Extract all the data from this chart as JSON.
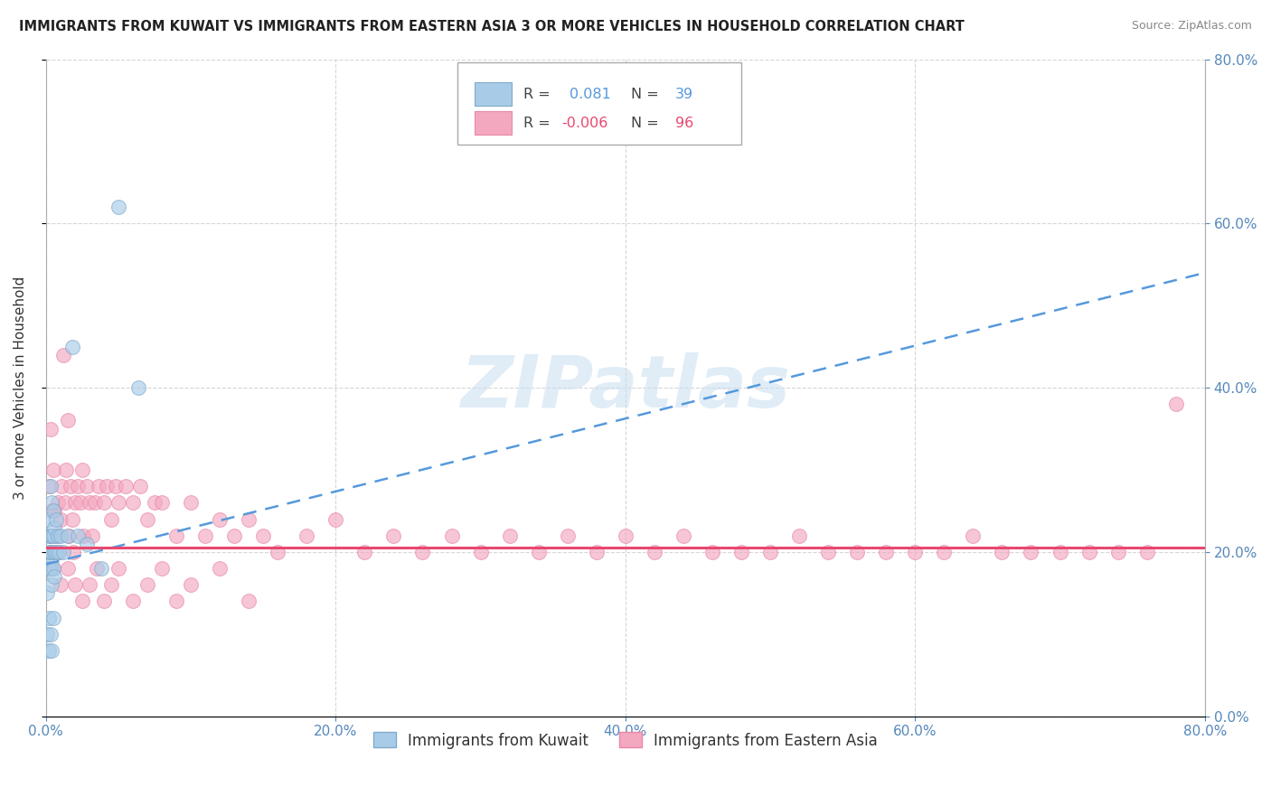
{
  "title": "IMMIGRANTS FROM KUWAIT VS IMMIGRANTS FROM EASTERN ASIA 3 OR MORE VEHICLES IN HOUSEHOLD CORRELATION CHART",
  "source": "Source: ZipAtlas.com",
  "ylabel": "3 or more Vehicles in Household",
  "legend1_R": "0.081",
  "legend1_N": "39",
  "legend2_R": "-0.006",
  "legend2_N": "96",
  "kuwait_color": "#a8cce8",
  "kuwait_edge": "#80aacc",
  "ea_color": "#f4a8c0",
  "ea_edge": "#e888a8",
  "trend_kuwait_color": "#5599dd",
  "trend_ea_color": "#e84870",
  "background_color": "#ffffff",
  "grid_color": "#cccccc",
  "tick_color": "#5588bb",
  "watermark": "ZIPatlas",
  "watermark_color": "#c8ddf0",
  "xlim": [
    0.0,
    0.8
  ],
  "ylim": [
    0.0,
    0.8
  ],
  "xticks": [
    0.0,
    0.2,
    0.4,
    0.6,
    0.8
  ],
  "yticks": [
    0.0,
    0.2,
    0.4,
    0.6,
    0.8
  ],
  "kuwait_x": [
    0.001,
    0.001,
    0.001,
    0.001,
    0.002,
    0.002,
    0.002,
    0.002,
    0.002,
    0.003,
    0.003,
    0.003,
    0.003,
    0.003,
    0.004,
    0.004,
    0.004,
    0.004,
    0.004,
    0.005,
    0.005,
    0.005,
    0.005,
    0.006,
    0.006,
    0.006,
    0.007,
    0.007,
    0.008,
    0.009,
    0.01,
    0.012,
    0.015,
    0.018,
    0.022,
    0.028,
    0.038,
    0.05,
    0.064
  ],
  "kuwait_y": [
    0.24,
    0.19,
    0.15,
    0.1,
    0.22,
    0.2,
    0.18,
    0.12,
    0.08,
    0.28,
    0.22,
    0.2,
    0.18,
    0.1,
    0.26,
    0.22,
    0.2,
    0.16,
    0.08,
    0.25,
    0.22,
    0.18,
    0.12,
    0.23,
    0.2,
    0.17,
    0.24,
    0.2,
    0.22,
    0.2,
    0.22,
    0.2,
    0.22,
    0.45,
    0.22,
    0.21,
    0.18,
    0.62,
    0.4
  ],
  "ea_x": [
    0.002,
    0.003,
    0.003,
    0.004,
    0.005,
    0.005,
    0.006,
    0.007,
    0.008,
    0.009,
    0.01,
    0.011,
    0.012,
    0.013,
    0.014,
    0.015,
    0.016,
    0.017,
    0.018,
    0.019,
    0.02,
    0.022,
    0.024,
    0.025,
    0.026,
    0.028,
    0.03,
    0.032,
    0.034,
    0.036,
    0.04,
    0.042,
    0.045,
    0.048,
    0.05,
    0.055,
    0.06,
    0.065,
    0.07,
    0.075,
    0.08,
    0.09,
    0.1,
    0.11,
    0.12,
    0.13,
    0.14,
    0.15,
    0.16,
    0.18,
    0.2,
    0.22,
    0.24,
    0.26,
    0.28,
    0.3,
    0.32,
    0.34,
    0.36,
    0.38,
    0.4,
    0.42,
    0.44,
    0.46,
    0.48,
    0.5,
    0.52,
    0.54,
    0.56,
    0.58,
    0.6,
    0.62,
    0.64,
    0.66,
    0.68,
    0.7,
    0.72,
    0.74,
    0.01,
    0.015,
    0.02,
    0.025,
    0.03,
    0.035,
    0.04,
    0.045,
    0.05,
    0.06,
    0.07,
    0.08,
    0.09,
    0.1,
    0.12,
    0.14,
    0.78,
    0.76
  ],
  "ea_y": [
    0.28,
    0.35,
    0.22,
    0.25,
    0.3,
    0.18,
    0.25,
    0.22,
    0.26,
    0.2,
    0.24,
    0.28,
    0.44,
    0.26,
    0.3,
    0.36,
    0.22,
    0.28,
    0.24,
    0.2,
    0.26,
    0.28,
    0.26,
    0.3,
    0.22,
    0.28,
    0.26,
    0.22,
    0.26,
    0.28,
    0.26,
    0.28,
    0.24,
    0.28,
    0.26,
    0.28,
    0.26,
    0.28,
    0.24,
    0.26,
    0.26,
    0.22,
    0.26,
    0.22,
    0.24,
    0.22,
    0.24,
    0.22,
    0.2,
    0.22,
    0.24,
    0.2,
    0.22,
    0.2,
    0.22,
    0.2,
    0.22,
    0.2,
    0.22,
    0.2,
    0.22,
    0.2,
    0.22,
    0.2,
    0.2,
    0.2,
    0.22,
    0.2,
    0.2,
    0.2,
    0.2,
    0.2,
    0.22,
    0.2,
    0.2,
    0.2,
    0.2,
    0.2,
    0.16,
    0.18,
    0.16,
    0.14,
    0.16,
    0.18,
    0.14,
    0.16,
    0.18,
    0.14,
    0.16,
    0.18,
    0.14,
    0.16,
    0.18,
    0.14,
    0.38,
    0.2
  ]
}
